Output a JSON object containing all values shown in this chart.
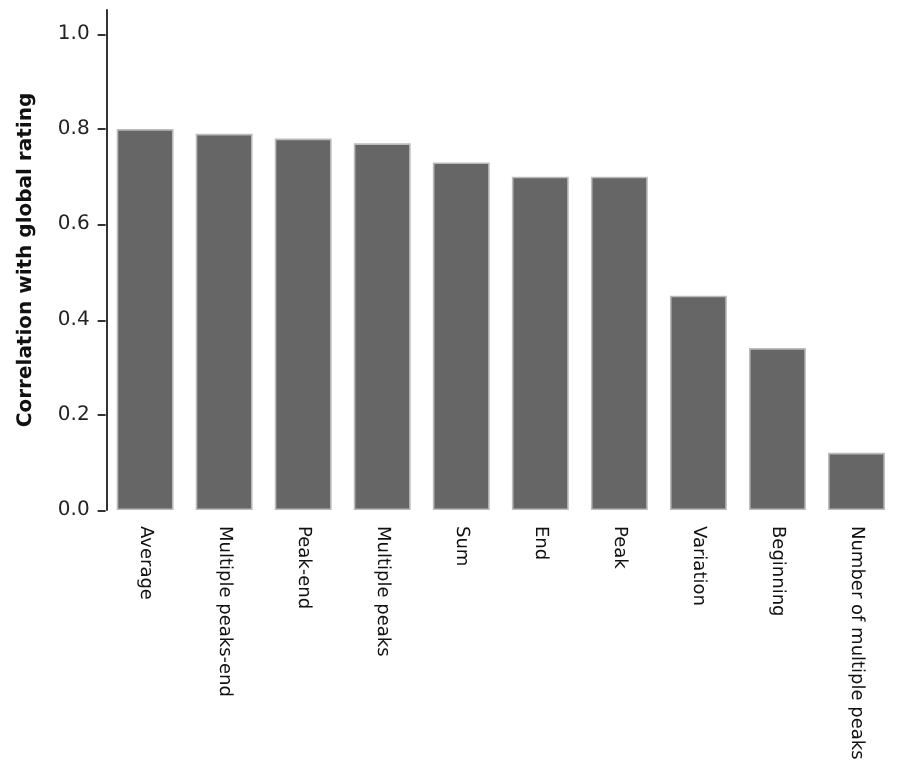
{
  "chart_data": {
    "type": "bar",
    "ylabel": "Correlation with global rating",
    "categories": [
      "Average",
      "Multiple peaks-end",
      "Peak-end",
      "Multiple peaks",
      "Sum",
      "End",
      "Peak",
      "Variation",
      "Beginning",
      "Number of multiple peaks"
    ],
    "values": [
      0.8,
      0.79,
      0.78,
      0.77,
      0.73,
      0.7,
      0.7,
      0.45,
      0.34,
      0.12
    ],
    "color": "#666666",
    "ylim": [
      0,
      1.05
    ],
    "yticks": [
      {
        "value": 0,
        "label": "0.0"
      },
      {
        "value": 0.2,
        "label": "0.2"
      },
      {
        "value": 0.4,
        "label": "0.4"
      },
      {
        "value": 0.6,
        "label": "0.6"
      },
      {
        "value": 0.8,
        "label": "0.8"
      },
      {
        "value": 1,
        "label": "1.0"
      }
    ],
    "grid": false
  }
}
